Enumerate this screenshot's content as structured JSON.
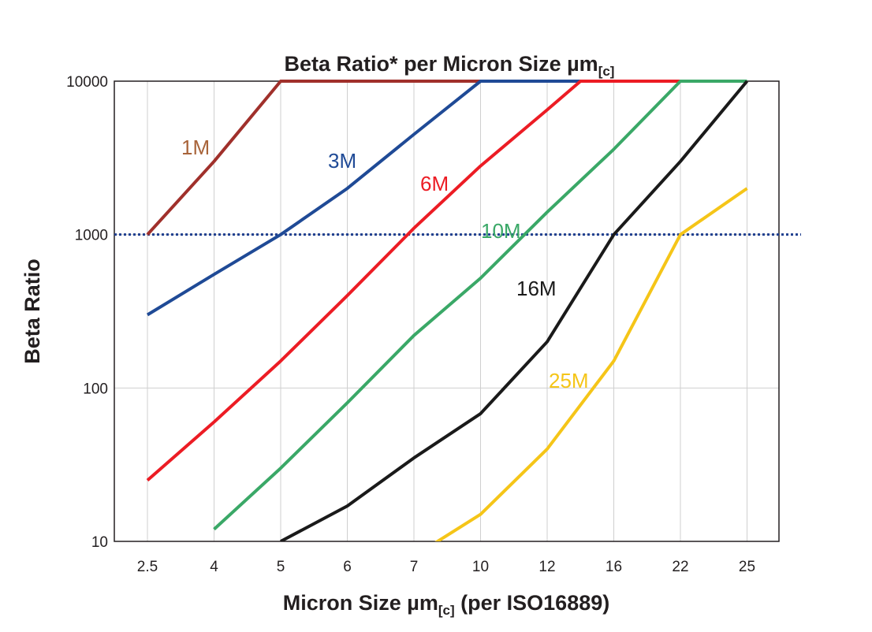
{
  "chart_data": {
    "type": "line",
    "title": "Beta Ratio* per Micron Size µm",
    "title_subscript": "[c]",
    "xlabel": "Micron Size µm",
    "xlabel_subscript": "[c]",
    "xlabel_suffix": " (per ISO16889)",
    "ylabel": "Beta Ratio",
    "y_scale": "log",
    "ylim": [
      10,
      10000
    ],
    "y_ticks": [
      "10",
      "100",
      "1000",
      "10000"
    ],
    "categories": [
      "2.5",
      "4",
      "5",
      "6",
      "7",
      "10",
      "12",
      "16",
      "22",
      "25"
    ],
    "grid": true,
    "reference_line": {
      "y": 1000,
      "style": "dotted",
      "color": "#1f3f8f"
    },
    "series": [
      {
        "name": "1M",
        "color": "#a0302b",
        "label_color": "#a8643a",
        "points": [
          [
            "2.5",
            1000
          ],
          [
            "4",
            3000
          ],
          [
            "5",
            10000
          ],
          [
            "25",
            10000
          ]
        ]
      },
      {
        "name": "3M",
        "color": "#1f4a96",
        "points": [
          [
            "2.5",
            300
          ],
          [
            "4",
            550
          ],
          [
            "5",
            1000
          ],
          [
            "6",
            2000
          ],
          [
            "7",
            4500
          ],
          [
            "10",
            10000
          ],
          [
            "25",
            10000
          ]
        ]
      },
      {
        "name": "6M",
        "color": "#ec1c24",
        "points": [
          [
            "2.5",
            25
          ],
          [
            "4",
            60
          ],
          [
            "5",
            150
          ],
          [
            "6",
            400
          ],
          [
            "7",
            1100
          ],
          [
            "10",
            2800
          ],
          [
            "12",
            6500
          ],
          [
            "14",
            10000
          ],
          [
            "25",
            10000
          ]
        ]
      },
      {
        "name": "10M",
        "color": "#3aa867",
        "points": [
          [
            "4",
            12
          ],
          [
            "5",
            30
          ],
          [
            "6",
            80
          ],
          [
            "7",
            220
          ],
          [
            "10",
            520
          ],
          [
            "12",
            1400
          ],
          [
            "16",
            3600
          ],
          [
            "22",
            10000
          ],
          [
            "25",
            10000
          ]
        ]
      },
      {
        "name": "16M",
        "color": "#1a1a1a",
        "points": [
          [
            "5",
            10
          ],
          [
            "6",
            17
          ],
          [
            "7",
            35
          ],
          [
            "10",
            68
          ],
          [
            "12",
            200
          ],
          [
            "16",
            1000
          ],
          [
            "22",
            3000
          ],
          [
            "25",
            10000
          ]
        ]
      },
      {
        "name": "25M",
        "color": "#f5c518",
        "points": [
          [
            "7",
            8
          ],
          [
            "10",
            15
          ],
          [
            "12",
            40
          ],
          [
            "16",
            150
          ],
          [
            "22",
            1000
          ],
          [
            "25",
            2000
          ]
        ]
      }
    ]
  }
}
